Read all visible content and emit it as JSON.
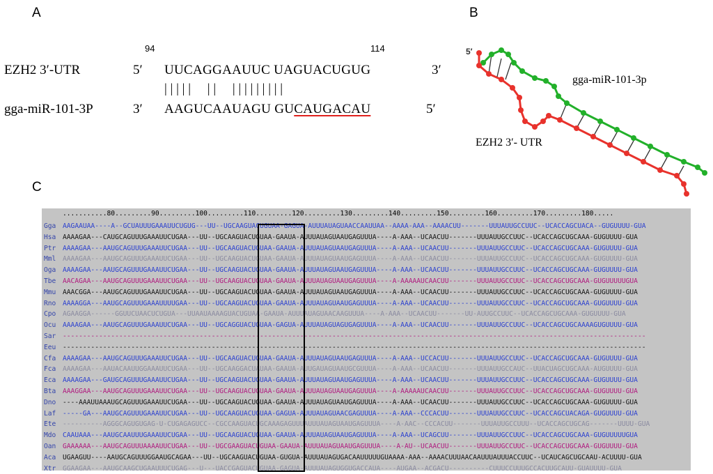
{
  "panel_a": {
    "label": "A",
    "pos_start": "94",
    "pos_end": "114",
    "target_name": "EZH2 3′-UTR",
    "target_5p": "5′",
    "target_seq": "UUCAGGAAUUC UAGUACUGUG",
    "target_3p": "3′",
    "pairs": "| | | | |     | |     | | | | | | | | |",
    "mirna_name": "gga-miR-101-3P",
    "mirna_3p": "3′",
    "mirna_seq_plain": "AAGUCAAUAGU GU",
    "mirna_seq_seed": "CAUGACAU",
    "mirna_5p": "5′"
  },
  "panel_b": {
    "label": "B",
    "five_prime": "5′",
    "mirna_label": "gga-miR-101-3p",
    "utr_label": "EZH2  3′- UTR",
    "mirna_color": "#22b02a",
    "utr_color": "#e8322c"
  },
  "panel_c": {
    "label": "C",
    "ruler": "...........80.........90.........100.........110.........120.........130.........140.........150.........160.........170.........180.....",
    "colors": {
      "blue": "#2a3fd0",
      "black": "#111111",
      "gray": "#8a8aa0",
      "magenta": "#b0187e",
      "panel": "#c4c4c4"
    },
    "species": [
      {
        "name": "Gga",
        "color": "blue",
        "seq": "AAGAAUAA----A--GCUAUUUGAAAUUCUGUG---UU--UGCAAGUACUGUAA-GAGUA-AUUUAUAGUAACCAAUUAA--AAAA-AAA--AAAACUU-------UUUAUUGCCUUC--UCACCAGCUACA--GUGUUUU-GUA"
      },
      {
        "name": "Hsa",
        "color": "black",
        "seq": "AAAAGAA---CAUGCAGUUUGAAAUUCUGAA---UU--UGCAAGUACUGUAA-GAAUA-AUUUAUAGUAAUGAGUUUA----A-AAA--UCAACUU-------UUUAUUGCCUUC--UCACCAGCUGCAAA-GUGUUUU-GUA"
      },
      {
        "name": "Ptr",
        "color": "blue",
        "seq": "AAAAGAA---AAUGCAGUUUGAAAUUCUGAA---UU--UGCAAGUACUGUAA-GAAUA-AUUUAUAGUAAUGAGUUUA----A-AAA--UCAACUU-------UUUAUUGCCUUC--UCACCAGCUGCAAA-GUGUUUU-GUA"
      },
      {
        "name": "Mml",
        "color": "gray",
        "seq": "AAAAGAA---AAUGCAGUUUGAAAUUCUGAA---UU--UGCAAGUACUGUAA-GAAUA-AUUUAUAGUAAUGAGUUUA----A-AAA--UCAACUU-------UUUAUUGCCUUC--UCACCAGCUGCAAA-GUGUUUU-GUA"
      },
      {
        "name": "Oga",
        "color": "blue",
        "seq": "AAAAGAA---AAUGCAGUUUGAAAUUCUGAA---UU--UGCAAGUACUGUAA-GAAUA-AUUUAUAGUAAUGAGUUUA----A-AAA--UCAACUU-------UUUAUUGCCUUC--UCACCAGCUGCAAA-GUGUUUU-GUA"
      },
      {
        "name": "Tbe",
        "color": "magenta",
        "seq": "AACAGAA---AAUGCAGUUUGAAAUUCUGAA---UU--UGCAAGUACUGUAA-GAAUA-AUUUAUAGUAAUGAGUUUA----A-AAAAAUCAACUU-------UUUAUUGCCUUC--UCACCAGCUGCAAA-GUGUUUUUGUA"
      },
      {
        "name": "Mmu",
        "color": "black",
        "seq": "AAACGGA---AAUGCAGUUUGAAAUUCUGAA---UU--UGCAAGUACUGUAA-GAAUA-AUUUAUAGUAAUGAGUUUA----A-AAA--UCAACUU-------UUUAUUGCCUUC--UCACCAGCUGCAAA-GUGUUUU-GUA"
      },
      {
        "name": "Rno",
        "color": "blue",
        "seq": "AAAAGGA---AAUGCAGUUUGAAAUUUUGAA---UU--UGCAAGUACUGUAA-GAAUA-AUUUAUAGUAAUGAGUUUA----A-AAA--UCAACUU-------UUUAUUGCCUUC--UCACCAGCUGCAAA-GUGUUUU-GUA"
      },
      {
        "name": "Cpo",
        "color": "gray",
        "seq": "AGAAGGA------GGUUCUAACUCUGUA---UUAAUAAAAGUACUGUAA-GAAUA-AUUUAUAGUAACAAGUUUA----A-AAA--UCAACUU-------UU-AUUGCCUUC--UCACCAGCUGCAAA-GUGUUUU-GUA"
      },
      {
        "name": "Ocu",
        "color": "blue",
        "seq": "AAAAGAA---AAUGCAGUUUGAAAUUCUGAA---UU--UGCAGGUACUGUAA-GAGUA-AUUUAUAGUAGUGAGUUUA----A-AAA--UCAACUU-------UUUAUUGCCUUC--UCACCAGCUGCAAAAGUGUUUU-GUA"
      },
      {
        "name": "Sar",
        "color": "magenta",
        "seq": "-------------------------------------------------------------------------------------------------------------------------------------------------"
      },
      {
        "name": "Eeu",
        "color": "black",
        "seq": "-------------------------------------------------------------------------------------------------------------------------------------------------"
      },
      {
        "name": "Cfa",
        "color": "blue",
        "seq": "AAAAGAA---AAUGCAGUUUGAAAUUCUGAA---UU--UGCAAGUACUGUAA-GAAUA-AUUUAUAGUAAUGAGUUUA----A-AAA--UCCACUU-------UUUAUUGCCUUC--UCACCAGCUGCAAA-GUGUUUU-GUA"
      },
      {
        "name": "Fca",
        "color": "gray",
        "seq": "AAAAGAA---AAUACAAUUGGAAAUUCUGAA---UU--UGCAAGGACUAUAA-GAAUA-AUUGAUAGUAAUGCGUUUA----A-AAA--UCAACUU-------UUUAUUGCCAUC--UUACUAGCUGCAAA-AUGUUUU-GUA"
      },
      {
        "name": "Eca",
        "color": "blue",
        "seq": "AAAAGAA---GAUGCAGUUUGAAAUUCUGAA---UU--UGCAAGUACUGUAA-GAAUA-AUUUAUAGUAAUGAGUUUA----A-AAA--UCAACUU-------UUUAUUGCCUUC--UCACCAGCUGCAAA-GUGUUUU-GUA"
      },
      {
        "name": "Bta",
        "color": "magenta",
        "seq": "AAAGGAA---AAUGCAGUUUGAAAUUCUGAA---UU--UGCAAGUACUGUAA-GAAUA-AUUUAUAGUAAUGAGUUUA----A-AAAAAUCAACUU-------UUUAUUGCCUUC--UCACCAGCUGCAAA-GUGUUUU-GUA"
      },
      {
        "name": "Dno",
        "color": "black",
        "seq": "----AAAUUAAAUGCAGUUUGAAAUUCUGAA---UU--UGCAAGUACUGUAA-GAAUA-AUUUAUAGUAAUGAGUUUA----A-AAA--UCAACUU-------UUUAUUGCCUUC--UCACCAGCUGCAAA-GUGUUUU-GUA"
      },
      {
        "name": "Laf",
        "color": "blue",
        "seq": "-----GA---AAUGCAGUUUGAAAUUCUGAA---UU--UGCAAGUACUGUAA-GAGUA-AUUUAUAGUAACGAGUUUA----A-AAA--CCCACUU-------UUUAUUGCCUUC--UCACCAGCUACAGA-GUGUUUU-GUA"
      },
      {
        "name": "Ete",
        "color": "gray",
        "seq": "----------AGGGCAGUGUGAG-U-CUGAGAGUCC--CGCCAAGUACUGCAAAGAGUUUAUUUAUAGUAAUGAGUUUA----A-AAC--CCCACUU-------UUUAUUGCCUUU--UCACCAGCUGCAG-------UUUU-GUA"
      },
      {
        "name": "Mdo",
        "color": "blue",
        "seq": "CAAUAAA---AAUGCAAUUUGAAAUUCUGAA---UU--UGCAAGUACUGUAA-GAAUA-AUUUAUAGUAAUGAGUUUA----A-AAA--UCAGCUU-------UUUAUUGCCUUC--UCACCAGCUGCAAA-GUGUUUUUGUA"
      },
      {
        "name": "Oan",
        "color": "magenta",
        "seq": "GAAAAAA---AAUGCAGUUUAAAAUUCUGAA---UU--UGCGAAGUACUGUAA-GAAUA-AUUUAUAGUAAUGAGUUUA----A-AU--UCAACUU-------UUUAUUGCCUUC--UCACCAGCUGCAAA-GUGUUUU-GUA"
      },
      {
        "name": "Aca",
        "color": "black",
        "seq": "UGAAGUU----AAUGCAGUUUGGAAUGCAGAA---UU--UGCAAGUACUGUAA-GUGUA-AUUUAUAGUGACAAUUUUUGUAAAA-AAA--AAAACUUUAACAAUUUAUUUACCUUC--UCAUCAGCUGCAAU-ACUUUU-GUA"
      },
      {
        "name": "Xtr",
        "color": "gray",
        "seq": "GGAAGAA---AAUGCAAGCUGAAUUUCUGAG---U---UACCGAGUACUGUAA-GAGUA-AUUUAUAGUGGUGACCAUA----AUGAA--ACGACU----------CUUUCCUUUGCCACUUGCAUU-GUAUUUU-GUA"
      }
    ]
  }
}
